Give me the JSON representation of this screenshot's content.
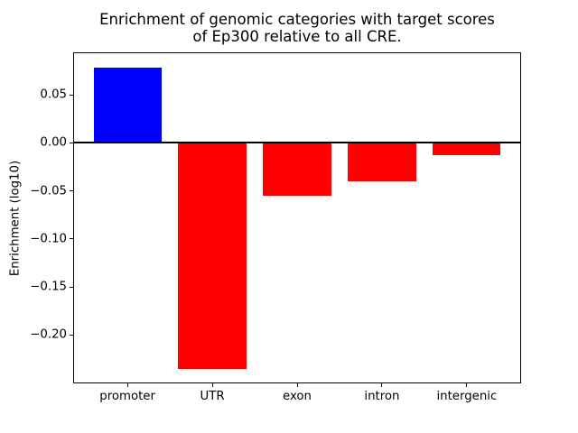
{
  "figure": {
    "background": "#ffffff",
    "axis_color": "#000000",
    "text_color": "#000000"
  },
  "chart_data": {
    "type": "bar",
    "title_line1": "Enrichment of genomic categories with target scores",
    "title_line2": "of Ep300 relative to all CRE.",
    "title": "Enrichment of genomic categories with target scores\nof Ep300 relative to all CRE.",
    "ylabel": "Enrichment (log10)",
    "xlabel": "",
    "categories": [
      "promoter",
      "UTR",
      "exon",
      "intron",
      "intergenic"
    ],
    "values": [
      0.078,
      -0.235,
      -0.055,
      -0.04,
      -0.013
    ],
    "positive_color": "#0000ff",
    "negative_color": "#ff0000",
    "bar_width": 0.8,
    "xlim": [
      -0.64,
      4.64
    ],
    "ylim": [
      -0.2503,
      0.0942
    ],
    "yticks": [
      0.05,
      0.0,
      -0.05,
      -0.1,
      -0.15,
      -0.2
    ],
    "ytick_labels": [
      "0.05",
      "0.00",
      "−0.05",
      "−0.10",
      "−0.15",
      "−0.20"
    ],
    "zero_line": true,
    "grid": false
  }
}
